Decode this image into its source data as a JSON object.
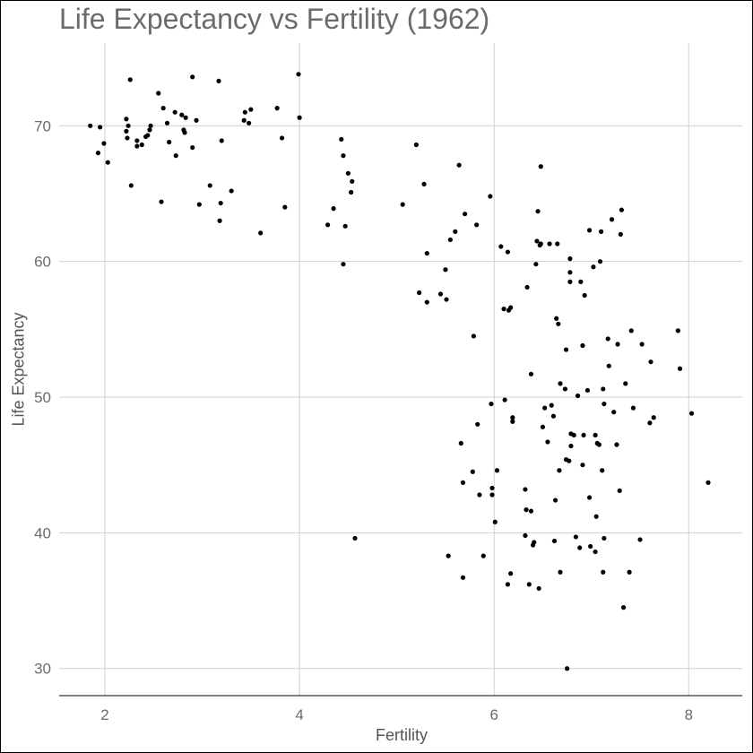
{
  "chart_data": {
    "type": "scatter",
    "title": "Life Expectancy vs Fertility (1962)",
    "xlabel": "Fertility",
    "ylabel": "Life Expectancy",
    "xlim": [
      1.53,
      8.55
    ],
    "ylim": [
      28.0,
      76.1
    ],
    "x_ticks": [
      2,
      4,
      6,
      8
    ],
    "y_ticks": [
      30,
      40,
      50,
      60,
      70
    ],
    "x_tick_labels": [
      "2",
      "4",
      "6",
      "8"
    ],
    "y_tick_labels": [
      "30",
      "40",
      "50",
      "60",
      "70"
    ],
    "grid": true,
    "point_color": "#000000",
    "points": [
      [
        1.85,
        70.0
      ],
      [
        1.93,
        68.0
      ],
      [
        1.95,
        69.9
      ],
      [
        1.99,
        68.7
      ],
      [
        2.03,
        67.3
      ],
      [
        2.22,
        70.5
      ],
      [
        2.22,
        69.6
      ],
      [
        2.23,
        69.1
      ],
      [
        2.24,
        70.0
      ],
      [
        2.26,
        73.4
      ],
      [
        2.27,
        65.6
      ],
      [
        2.33,
        68.9
      ],
      [
        2.33,
        68.5
      ],
      [
        2.38,
        68.6
      ],
      [
        2.42,
        69.2
      ],
      [
        2.44,
        69.3
      ],
      [
        2.46,
        69.7
      ],
      [
        2.47,
        70.0
      ],
      [
        2.55,
        72.4
      ],
      [
        2.58,
        64.4
      ],
      [
        2.6,
        71.3
      ],
      [
        2.64,
        70.2
      ],
      [
        2.66,
        68.8
      ],
      [
        2.72,
        71.0
      ],
      [
        2.73,
        67.8
      ],
      [
        2.79,
        70.8
      ],
      [
        2.81,
        69.7
      ],
      [
        2.82,
        69.5
      ],
      [
        2.83,
        70.6
      ],
      [
        2.9,
        73.6
      ],
      [
        2.9,
        68.4
      ],
      [
        2.94,
        70.4
      ],
      [
        2.97,
        64.2
      ],
      [
        3.08,
        65.6
      ],
      [
        3.17,
        73.3
      ],
      [
        3.18,
        63.0
      ],
      [
        3.19,
        64.3
      ],
      [
        3.2,
        68.9
      ],
      [
        3.3,
        65.2
      ],
      [
        3.43,
        70.4
      ],
      [
        3.44,
        71.0
      ],
      [
        3.48,
        70.2
      ],
      [
        3.5,
        71.2
      ],
      [
        3.6,
        62.1
      ],
      [
        3.77,
        71.3
      ],
      [
        3.82,
        69.1
      ],
      [
        3.85,
        64.0
      ],
      [
        3.99,
        73.8
      ],
      [
        4.0,
        70.6
      ],
      [
        4.29,
        62.7
      ],
      [
        4.35,
        63.9
      ],
      [
        4.43,
        69.0
      ],
      [
        4.45,
        67.8
      ],
      [
        4.45,
        59.8
      ],
      [
        4.47,
        62.6
      ],
      [
        4.5,
        66.5
      ],
      [
        4.53,
        65.1
      ],
      [
        4.54,
        65.9
      ],
      [
        4.57,
        39.6
      ],
      [
        5.06,
        64.2
      ],
      [
        5.2,
        68.6
      ],
      [
        5.23,
        57.7
      ],
      [
        5.28,
        65.7
      ],
      [
        5.31,
        57.0
      ],
      [
        5.31,
        60.6
      ],
      [
        5.45,
        57.6
      ],
      [
        5.5,
        59.4
      ],
      [
        5.51,
        57.2
      ],
      [
        5.55,
        61.6
      ],
      [
        5.53,
        38.3
      ],
      [
        5.6,
        62.2
      ],
      [
        5.64,
        67.1
      ],
      [
        5.66,
        46.6
      ],
      [
        5.68,
        43.7
      ],
      [
        5.68,
        36.7
      ],
      [
        5.7,
        63.5
      ],
      [
        5.78,
        44.5
      ],
      [
        5.79,
        54.5
      ],
      [
        5.82,
        62.7
      ],
      [
        5.83,
        48.0
      ],
      [
        5.85,
        42.8
      ],
      [
        5.89,
        38.3
      ],
      [
        5.96,
        64.8
      ],
      [
        5.97,
        49.5
      ],
      [
        5.98,
        43.3
      ],
      [
        5.98,
        42.8
      ],
      [
        6.01,
        40.8
      ],
      [
        6.03,
        44.6
      ],
      [
        6.07,
        61.1
      ],
      [
        6.1,
        56.5
      ],
      [
        6.11,
        49.8
      ],
      [
        6.14,
        60.7
      ],
      [
        6.14,
        36.2
      ],
      [
        6.15,
        56.4
      ],
      [
        6.17,
        56.6
      ],
      [
        6.17,
        37.0
      ],
      [
        6.19,
        48.5
      ],
      [
        6.19,
        48.2
      ],
      [
        6.32,
        43.2
      ],
      [
        6.32,
        39.8
      ],
      [
        6.33,
        41.7
      ],
      [
        6.34,
        58.1
      ],
      [
        6.36,
        36.2
      ],
      [
        6.38,
        41.6
      ],
      [
        6.38,
        51.7
      ],
      [
        6.4,
        39.1
      ],
      [
        6.41,
        39.3
      ],
      [
        6.43,
        59.8
      ],
      [
        6.44,
        61.5
      ],
      [
        6.45,
        63.7
      ],
      [
        6.46,
        35.9
      ],
      [
        6.47,
        61.2
      ],
      [
        6.48,
        61.3
      ],
      [
        6.48,
        67.0
      ],
      [
        6.5,
        47.8
      ],
      [
        6.52,
        49.2
      ],
      [
        6.55,
        46.7
      ],
      [
        6.57,
        61.3
      ],
      [
        6.59,
        49.4
      ],
      [
        6.61,
        48.6
      ],
      [
        6.62,
        39.4
      ],
      [
        6.63,
        42.4
      ],
      [
        6.64,
        55.8
      ],
      [
        6.65,
        61.3
      ],
      [
        6.66,
        55.4
      ],
      [
        6.67,
        44.6
      ],
      [
        6.68,
        51.0
      ],
      [
        6.68,
        37.1
      ],
      [
        6.73,
        50.6
      ],
      [
        6.74,
        53.5
      ],
      [
        6.74,
        45.4
      ],
      [
        6.75,
        30.0
      ],
      [
        6.77,
        45.3
      ],
      [
        6.78,
        58.5
      ],
      [
        6.78,
        60.2
      ],
      [
        6.78,
        59.2
      ],
      [
        6.79,
        46.4
      ],
      [
        6.79,
        47.3
      ],
      [
        6.82,
        47.2
      ],
      [
        6.84,
        39.7
      ],
      [
        6.86,
        50.1
      ],
      [
        6.88,
        38.9
      ],
      [
        6.89,
        58.5
      ],
      [
        6.91,
        45.0
      ],
      [
        6.91,
        53.8
      ],
      [
        6.92,
        47.2
      ],
      [
        6.93,
        57.5
      ],
      [
        6.96,
        50.5
      ],
      [
        6.98,
        62.3
      ],
      [
        6.98,
        42.6
      ],
      [
        6.99,
        39.0
      ],
      [
        7.02,
        59.6
      ],
      [
        7.04,
        38.6
      ],
      [
        7.04,
        47.2
      ],
      [
        7.05,
        41.2
      ],
      [
        7.06,
        46.6
      ],
      [
        7.08,
        46.5
      ],
      [
        7.09,
        60.0
      ],
      [
        7.1,
        62.2
      ],
      [
        7.11,
        44.6
      ],
      [
        7.12,
        50.6
      ],
      [
        7.12,
        37.1
      ],
      [
        7.13,
        49.5
      ],
      [
        7.13,
        39.6
      ],
      [
        7.17,
        54.3
      ],
      [
        7.18,
        52.3
      ],
      [
        7.21,
        63.1
      ],
      [
        7.23,
        48.9
      ],
      [
        7.26,
        46.5
      ],
      [
        7.27,
        53.9
      ],
      [
        7.29,
        43.1
      ],
      [
        7.3,
        62.0
      ],
      [
        7.31,
        63.8
      ],
      [
        7.33,
        34.5
      ],
      [
        7.35,
        51.0
      ],
      [
        7.39,
        37.1
      ],
      [
        7.41,
        54.9
      ],
      [
        7.43,
        49.2
      ],
      [
        7.5,
        39.5
      ],
      [
        7.52,
        53.9
      ],
      [
        7.6,
        48.1
      ],
      [
        7.61,
        52.6
      ],
      [
        7.64,
        48.5
      ],
      [
        7.89,
        54.9
      ],
      [
        7.91,
        52.1
      ],
      [
        8.03,
        48.8
      ],
      [
        8.2,
        43.7
      ]
    ]
  }
}
